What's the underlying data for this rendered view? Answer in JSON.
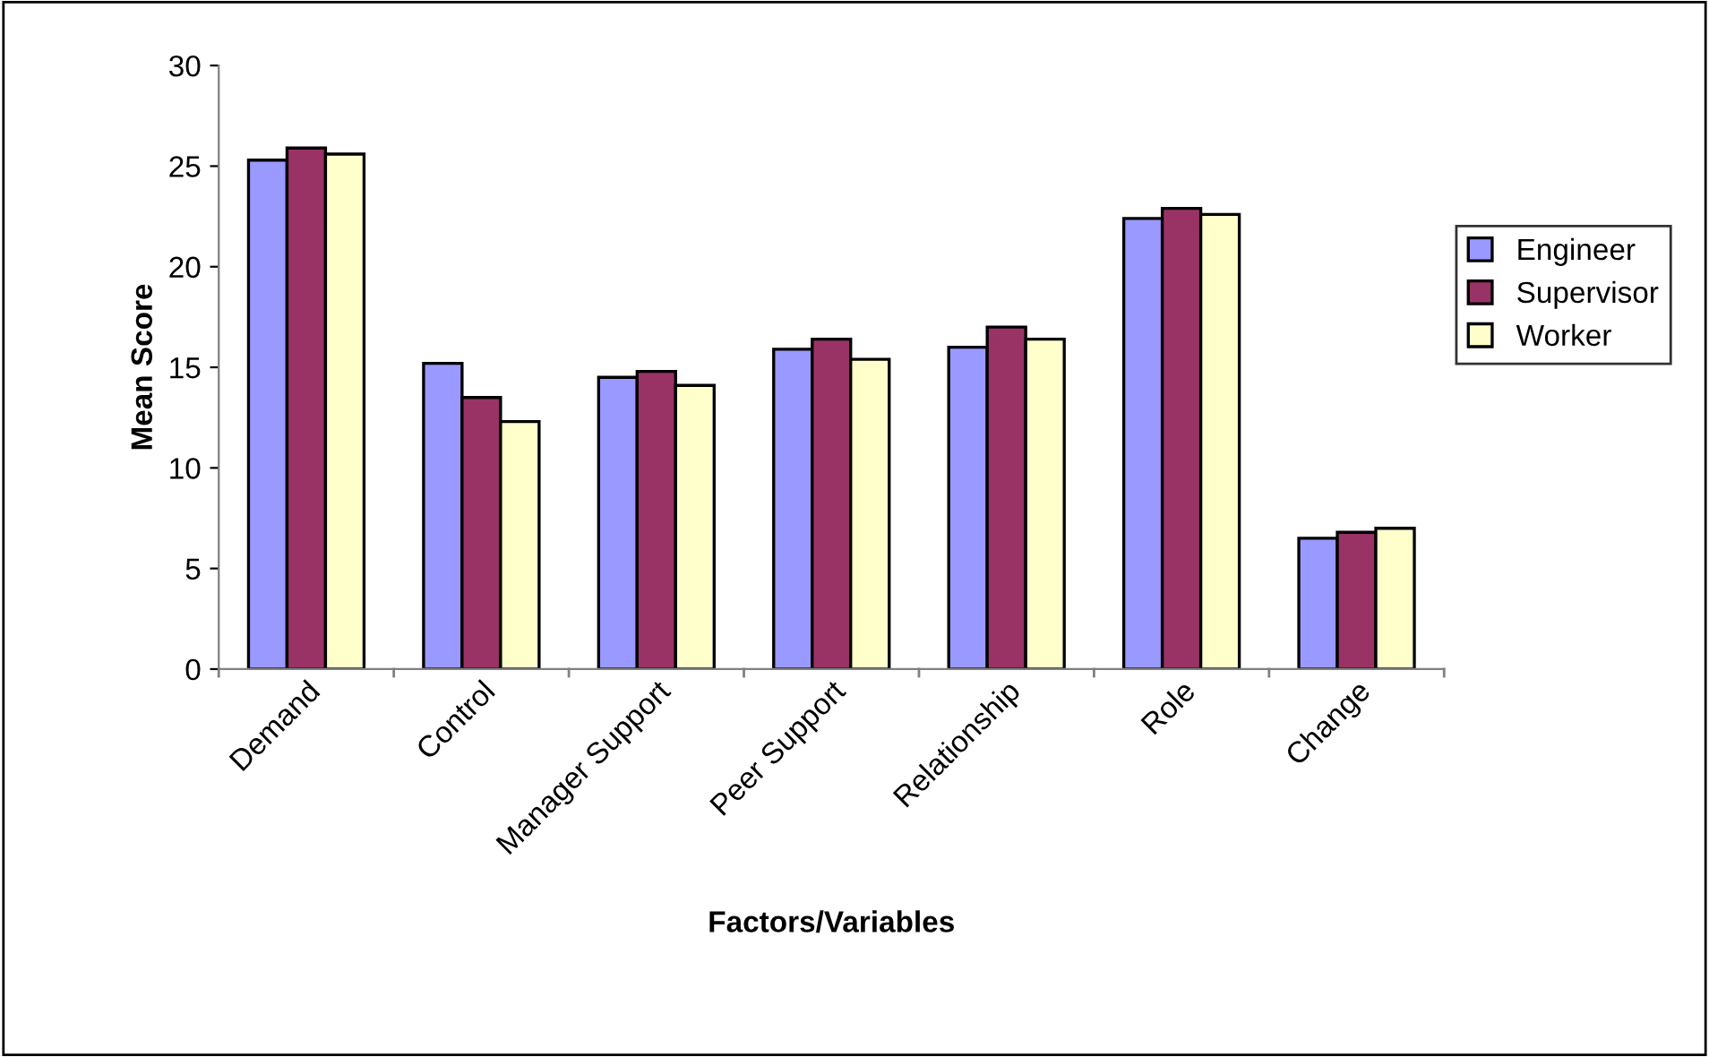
{
  "chart_data": {
    "type": "bar",
    "xlabel": "Factors/Variables",
    "ylabel": "Mean Score",
    "categories": [
      "Demand",
      "Control",
      "Manager Support",
      "Peer Support",
      "Relationship",
      "Role",
      "Change"
    ],
    "series": [
      {
        "name": "Engineer",
        "color": "#9999ff",
        "values": [
          25.3,
          15.2,
          14.5,
          15.9,
          16.0,
          22.4,
          6.5
        ]
      },
      {
        "name": "Supervisor",
        "color": "#993366",
        "values": [
          25.9,
          13.5,
          14.8,
          16.4,
          17.0,
          22.9,
          6.8
        ]
      },
      {
        "name": "Worker",
        "color": "#ffffcc",
        "values": [
          25.6,
          12.3,
          14.1,
          15.4,
          16.4,
          22.6,
          7.0
        ]
      }
    ],
    "ylim": [
      0,
      30
    ],
    "yticks": [
      0,
      5,
      10,
      15,
      20,
      25,
      30
    ],
    "grid": false,
    "legend": "right"
  }
}
